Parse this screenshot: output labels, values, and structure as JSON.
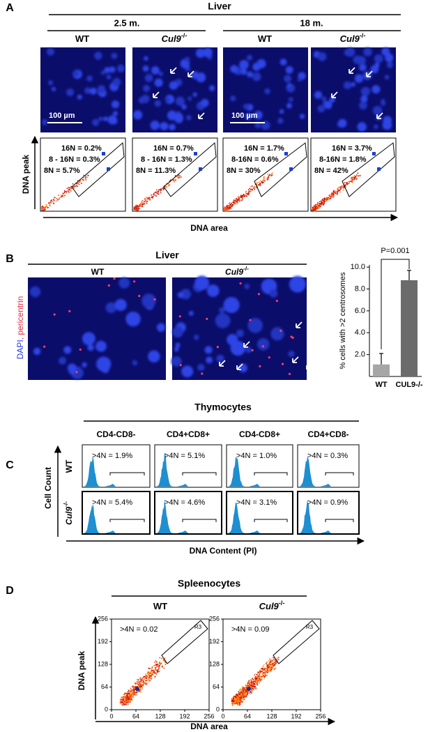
{
  "panel_a": {
    "letter": "A",
    "title": "Liver",
    "ages": [
      "2.5 m.",
      "18 m."
    ],
    "columns": [
      {
        "text": "WT"
      },
      {
        "text": "Cul9",
        "sup": "-/-"
      },
      {
        "text": "WT"
      },
      {
        "text": "Cul9",
        "sup": "-/-"
      }
    ],
    "scale_bar": "100 µm",
    "gates": [
      [
        "16N = 0.2%",
        "8 - 16N = 0.3%",
        "8N = 5.7%"
      ],
      [
        "16N = 0.7%",
        "8 - 16N = 1.3%",
        "8N = 11.3%"
      ],
      [
        "16N = 1.7%",
        "8-16N = 0.6%",
        "8N = 30%"
      ],
      [
        "16N = 3.7%",
        "8-16N = 1.8%",
        "8N = 42%"
      ]
    ],
    "y_axis": "DNA peak",
    "x_axis": "DNA area"
  },
  "panel_b": {
    "letter": "B",
    "title": "Liver",
    "columns": [
      {
        "text": "WT"
      },
      {
        "text": "Cul9",
        "sup": "-/-"
      }
    ],
    "stain": [
      "DAPI",
      ", pericentrin"
    ]
  },
  "chart_data": {
    "type": "bar",
    "ylabel": "% cells with >2 centrosomes",
    "categories": [
      "WT",
      "CUL9-/-"
    ],
    "values": [
      1.1,
      8.8
    ],
    "errors": [
      1.0,
      0.9
    ],
    "colors": [
      "#a6a6a6",
      "#6b6b6b"
    ],
    "ylim": [
      0,
      10.2
    ],
    "yticks": [
      {
        "value": 2,
        "label": "2.0"
      },
      {
        "value": 4,
        "label": "4.0"
      },
      {
        "value": 6,
        "label": "6.0"
      },
      {
        "value": 8,
        "label": "8.0"
      },
      {
        "value": 10,
        "label": "10.0"
      }
    ],
    "annotation": "P=0.001"
  },
  "panel_c": {
    "letter": "C",
    "title": "Thymocytes",
    "columns": [
      "CD4-CD8-",
      "CD4+CD8+",
      "CD4-CD8+",
      "CD4+CD8-"
    ],
    "rows": [
      {
        "text": "WT"
      },
      {
        "text": "Cul9",
        "sup": "-/-"
      }
    ],
    "values": [
      [
        ">4N = 1.9%",
        ">4N = 5.1%",
        ">4N = 1.0%",
        ">4N = 0.3%"
      ],
      [
        ">4N = 5.4%",
        ">4N = 4.6%",
        ">4N = 3.1%",
        ">4N = 0.9%"
      ]
    ],
    "y_axis": "Cell Count",
    "x_axis": "DNA Content (PI)"
  },
  "panel_d": {
    "letter": "D",
    "title": "Spleenocytes",
    "columns": [
      {
        "text": "WT"
      },
      {
        "text": "Cul9",
        "sup": "-/-"
      }
    ],
    "values": [
      ">4N = 0.02",
      ">4N = 0.09"
    ],
    "gate": "R3",
    "ticks": [
      0,
      64,
      128,
      192,
      256
    ],
    "y_axis": "DNA peak",
    "x_axis": "DNA area"
  }
}
